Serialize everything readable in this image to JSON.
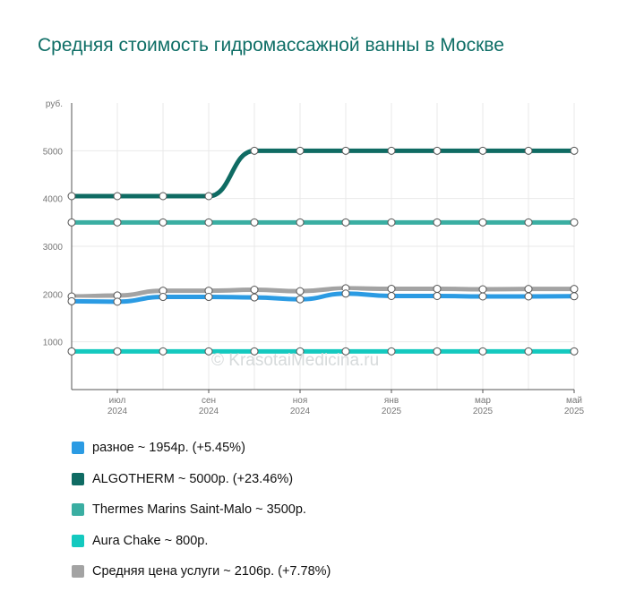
{
  "title": "Средняя стоимость гидромассажной ванны в Москве",
  "watermark": "© KrasotaiMedicina.ru",
  "chart_data": {
    "type": "line",
    "y_unit": "руб.",
    "ylim": [
      0,
      6000
    ],
    "y_ticks": [
      1000,
      2000,
      3000,
      4000,
      5000
    ],
    "x_points": [
      "2024-06",
      "2024-07",
      "2024-08",
      "2024-09",
      "2024-10",
      "2024-11",
      "2024-12",
      "2025-01",
      "2025-02",
      "2025-03",
      "2025-04",
      "2025-05"
    ],
    "x_tick_labels": [
      {
        "month": "июл",
        "year": "2024",
        "index": 1
      },
      {
        "month": "сен",
        "year": "2024",
        "index": 3
      },
      {
        "month": "ноя",
        "year": "2024",
        "index": 5
      },
      {
        "month": "янв",
        "year": "2025",
        "index": 7
      },
      {
        "month": "мар",
        "year": "2025",
        "index": 9
      },
      {
        "month": "май",
        "year": "2025",
        "index": 11
      }
    ],
    "grid": true,
    "series": [
      {
        "name": "разное",
        "color": "#2b9be3",
        "values": [
          1850,
          1840,
          1940,
          1940,
          1930,
          1890,
          2010,
          1960,
          1960,
          1950,
          1950,
          1954
        ]
      },
      {
        "name": "ALGOTHERM",
        "color": "#0f6b63",
        "values": [
          4050,
          4050,
          4050,
          4050,
          5000,
          5000,
          5000,
          5000,
          5000,
          5000,
          5000,
          5000
        ]
      },
      {
        "name": "Thermes Marins Saint-Malo",
        "color": "#3aaea2",
        "values": [
          3500,
          3500,
          3500,
          3500,
          3500,
          3500,
          3500,
          3500,
          3500,
          3500,
          3500,
          3500
        ]
      },
      {
        "name": "Aura Chake",
        "color": "#14c9bf",
        "values": [
          800,
          800,
          800,
          800,
          800,
          800,
          800,
          800,
          800,
          800,
          800,
          800
        ]
      },
      {
        "name": "Средняя цена услуги",
        "color": "#a3a3a3",
        "values": [
          1950,
          1970,
          2070,
          2070,
          2090,
          2060,
          2120,
          2110,
          2110,
          2100,
          2106,
          2106
        ]
      }
    ]
  },
  "legend": [
    {
      "label": "разное ~ 1954р. (+5.45%)",
      "color": "#2b9be3"
    },
    {
      "label": "ALGOTHERM ~ 5000р. (+23.46%)",
      "color": "#0f6b63"
    },
    {
      "label": "Thermes Marins Saint-Malo ~ 3500р.",
      "color": "#3aaea2"
    },
    {
      "label": "Aura Chake ~ 800р.",
      "color": "#14c9bf"
    },
    {
      "label": "Средняя цена услуги ~ 2106р. (+7.78%)",
      "color": "#a3a3a3"
    }
  ]
}
